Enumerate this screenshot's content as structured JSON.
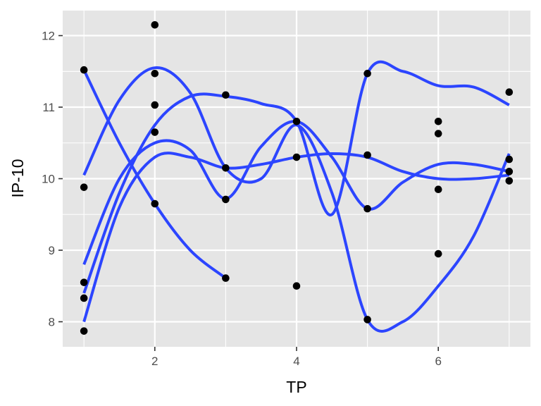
{
  "chart_data": {
    "type": "scatter",
    "title": "",
    "xlabel": "TP",
    "ylabel": "IP-10",
    "xlim": [
      0.7,
      7.3
    ],
    "ylim": [
      7.65,
      12.35
    ],
    "x_ticks": [
      2,
      4,
      6
    ],
    "y_ticks": [
      8,
      9,
      10,
      11,
      12
    ],
    "grid": true,
    "colors": {
      "panel": "#E5E5E5",
      "grid": "#FFFFFF",
      "points": "#000000",
      "smooth": "#2C45FF"
    },
    "points": [
      {
        "x": 1,
        "y": 11.52
      },
      {
        "x": 1,
        "y": 9.88
      },
      {
        "x": 1,
        "y": 8.55
      },
      {
        "x": 1,
        "y": 8.33
      },
      {
        "x": 1,
        "y": 7.87
      },
      {
        "x": 2,
        "y": 12.15
      },
      {
        "x": 2,
        "y": 11.47
      },
      {
        "x": 2,
        "y": 11.03
      },
      {
        "x": 2,
        "y": 10.65
      },
      {
        "x": 2,
        "y": 9.65
      },
      {
        "x": 3,
        "y": 11.17
      },
      {
        "x": 3,
        "y": 10.15
      },
      {
        "x": 3,
        "y": 9.71
      },
      {
        "x": 3,
        "y": 8.61
      },
      {
        "x": 4,
        "y": 10.8
      },
      {
        "x": 4,
        "y": 10.3
      },
      {
        "x": 4,
        "y": 8.5
      },
      {
        "x": 5,
        "y": 11.47
      },
      {
        "x": 5,
        "y": 10.33
      },
      {
        "x": 5,
        "y": 9.58
      },
      {
        "x": 5,
        "y": 8.03
      },
      {
        "x": 6,
        "y": 10.8
      },
      {
        "x": 6,
        "y": 10.63
      },
      {
        "x": 6,
        "y": 9.85
      },
      {
        "x": 6,
        "y": 8.95
      },
      {
        "x": 7,
        "y": 11.21
      },
      {
        "x": 7,
        "y": 10.27
      },
      {
        "x": 7,
        "y": 10.1
      },
      {
        "x": 7,
        "y": 9.97
      }
    ],
    "series": [
      {
        "x": [
          1,
          1.5,
          2,
          2.5,
          3
        ],
        "y": [
          11.52,
          10.5,
          9.65,
          9.0,
          8.61
        ]
      },
      {
        "x": [
          1,
          1.5,
          2,
          2.5,
          3,
          3.5,
          4,
          4.5,
          5,
          5.5,
          6,
          6.5,
          7
        ],
        "y": [
          10.05,
          11.1,
          11.55,
          11.2,
          10.15,
          10.0,
          10.75,
          9.8,
          8.03,
          8.0,
          8.5,
          9.2,
          10.35
        ]
      },
      {
        "x": [
          1,
          1.5,
          2,
          2.5,
          3,
          3.5,
          4,
          4.5,
          5,
          5.5,
          6,
          6.5,
          7
        ],
        "y": [
          8.8,
          10.0,
          10.5,
          10.4,
          9.72,
          10.45,
          10.8,
          10.3,
          9.58,
          9.95,
          10.2,
          10.2,
          10.1
        ]
      },
      {
        "x": [
          1,
          1.5,
          2,
          2.5,
          3,
          3.5,
          4,
          4.5,
          5,
          5.5,
          6,
          6.5,
          7
        ],
        "y": [
          8.4,
          9.8,
          10.75,
          11.15,
          11.15,
          11.05,
          10.8,
          9.5,
          11.47,
          11.5,
          11.3,
          11.28,
          11.03
        ]
      },
      {
        "x": [
          1,
          1.5,
          2,
          2.5,
          3,
          3.5,
          4,
          4.5,
          5,
          5.5,
          6,
          6.5,
          7
        ],
        "y": [
          8.0,
          9.6,
          10.3,
          10.3,
          10.15,
          10.2,
          10.3,
          10.35,
          10.3,
          10.1,
          10.0,
          10.0,
          10.05
        ]
      }
    ]
  }
}
